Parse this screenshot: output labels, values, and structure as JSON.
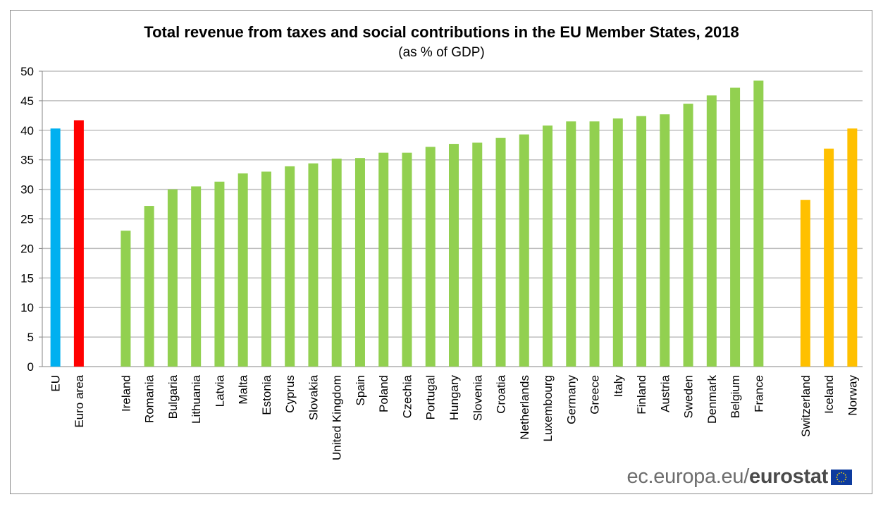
{
  "chart_data": {
    "type": "bar",
    "title": "Total revenue from taxes and social contributions in the EU Member States, 2018",
    "subtitle": "(as % of GDP)",
    "xlabel": "",
    "ylabel": "",
    "ylim": [
      0,
      50
    ],
    "yticks": [
      0,
      5,
      10,
      15,
      20,
      25,
      30,
      35,
      40,
      45,
      50
    ],
    "grid": true,
    "legend": "none",
    "categories": [
      "EU",
      "Euro area",
      "",
      "Ireland",
      "Romania",
      "Bulgaria",
      "Lithuania",
      "Latvia",
      "Malta",
      "Estonia",
      "Cyprus",
      "Slovakia",
      "United Kingdom",
      "Spain",
      "Poland",
      "Czechia",
      "Portugal",
      "Hungary",
      "Slovenia",
      "Croatia",
      "Netherlands",
      "Luxembourg",
      "Germany",
      "Greece",
      "Italy",
      "Finland",
      "Austria",
      "Sweden",
      "Denmark",
      "Belgium",
      "France",
      "",
      "Switzerland",
      "Iceland",
      "Norway"
    ],
    "values": [
      40.3,
      41.7,
      null,
      23.0,
      27.2,
      30.0,
      30.5,
      31.3,
      32.7,
      33.0,
      33.9,
      34.4,
      35.2,
      35.3,
      36.2,
      36.2,
      37.2,
      37.7,
      37.9,
      38.7,
      39.3,
      40.8,
      41.5,
      41.5,
      42.0,
      42.4,
      42.7,
      44.5,
      45.9,
      47.2,
      48.4,
      null,
      28.2,
      36.9,
      40.3
    ],
    "groups": [
      "eu",
      "euro",
      "",
      "member",
      "member",
      "member",
      "member",
      "member",
      "member",
      "member",
      "member",
      "member",
      "member",
      "member",
      "member",
      "member",
      "member",
      "member",
      "member",
      "member",
      "member",
      "member",
      "member",
      "member",
      "member",
      "member",
      "member",
      "member",
      "member",
      "member",
      "member",
      "",
      "efta",
      "efta",
      "efta"
    ],
    "colors": {
      "eu": "#00b0f0",
      "euro": "#ff0000",
      "member": "#92d050",
      "efta": "#ffc000"
    }
  },
  "logo": {
    "domain": "ec.europa.eu/",
    "brand": "eurostat"
  }
}
